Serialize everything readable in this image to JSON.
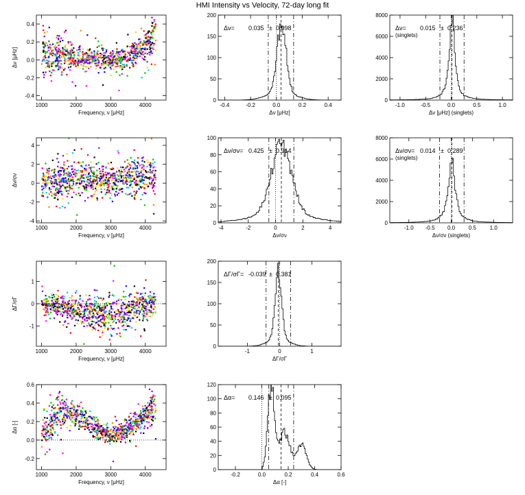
{
  "title": "HMI Intensity vs Velocity, 72-day long fit",
  "chart_data": [
    {
      "id": "p11",
      "type": "scatter",
      "xlabel": "Frequency, ν [μHz]",
      "ylabel": "Δν [μHz]",
      "xlim": [
        850,
        4600
      ],
      "ylim": [
        -0.45,
        0.5
      ],
      "xticks": [
        1000,
        2000,
        3000,
        4000
      ],
      "xtick_labels": [
        "1000",
        "2000",
        "3000",
        "4000"
      ],
      "yticks": [
        -0.4,
        -0.2,
        0.0,
        0.2,
        0.4
      ],
      "ytick_labels": [
        "-0.4",
        "-0.2",
        "0.0",
        "0.2",
        "0.4"
      ],
      "trend": [
        [
          1000,
          0.06
        ],
        [
          1500,
          0.05
        ],
        [
          2000,
          0.03
        ],
        [
          2500,
          0.01
        ],
        [
          3000,
          0.0
        ],
        [
          3500,
          0.03
        ],
        [
          4000,
          0.15
        ],
        [
          4300,
          0.3
        ]
      ],
      "spread": [
        [
          1000,
          0.12
        ],
        [
          2000,
          0.07
        ],
        [
          3000,
          0.05
        ],
        [
          4000,
          0.08
        ],
        [
          4300,
          0.12
        ]
      ],
      "xrange": [
        1000,
        4300
      ],
      "n": 900,
      "seed": 11
    },
    {
      "id": "p12",
      "type": "histogram",
      "xlabel": "Δν [μHz]",
      "ylabel": "",
      "xlim": [
        -0.45,
        0.5
      ],
      "ylim": [
        0,
        200
      ],
      "xticks": [
        -0.4,
        -0.2,
        0.0,
        0.2,
        0.4
      ],
      "xtick_labels": [
        "-0.4",
        "-0.2",
        "0.0",
        "0.2",
        "0.4"
      ],
      "yticks": [
        0,
        50,
        100,
        150,
        200
      ],
      "ytick_labels": [
        "0",
        "50",
        "100",
        "150",
        "200"
      ],
      "mean": 0.035,
      "sigma": 0.098,
      "peak": 162,
      "width": 0.035,
      "skew": 0.15,
      "bins": 120,
      "seed": 12,
      "vlines": {
        "dotted": [
          0.0
        ],
        "dashed": [
          0.035
        ],
        "dashdot": [
          -0.063,
          0.133
        ]
      },
      "annotation": {
        "label": "Δν=",
        "mean": "0.035",
        "pm": "±",
        "sigma": "0.098",
        "note": ""
      }
    },
    {
      "id": "p13",
      "type": "histogram",
      "xlabel": "Δν [μHz] (singlets)",
      "ylabel": "",
      "xlim": [
        -1.2,
        1.2
      ],
      "ylim": [
        0,
        8000
      ],
      "xticks": [
        -1.0,
        -0.5,
        0.0,
        0.5,
        1.0
      ],
      "xtick_labels": [
        "-1.0",
        "-0.5",
        "0.0",
        "0.5",
        "1.0"
      ],
      "yticks": [
        0,
        2000,
        4000,
        6000,
        8000
      ],
      "ytick_labels": [
        "0",
        "2000",
        "4000",
        "6000",
        "8000"
      ],
      "mean": 0.015,
      "sigma": 0.236,
      "peak": 7900,
      "width": 0.06,
      "skew": 0,
      "bins": 120,
      "seed": 13,
      "profile": "lorentz",
      "vlines": {
        "dotted": [
          0.0
        ],
        "dashed": [
          0.015
        ],
        "dashdot": [
          -0.221,
          0.251
        ]
      },
      "annotation": {
        "label": "Δν=",
        "mean": "0.015",
        "pm": "±",
        "sigma": "0.236",
        "note": "(singlets)"
      }
    },
    {
      "id": "p21",
      "type": "scatter",
      "xlabel": "Frequency, ν [μHz]",
      "ylabel": "Δν/σν",
      "xlim": [
        850,
        4600
      ],
      "ylim": [
        -4.2,
        4.8
      ],
      "xticks": [
        1000,
        2000,
        3000,
        4000
      ],
      "xtick_labels": [
        "1000",
        "2000",
        "3000",
        "4000"
      ],
      "yticks": [
        -4,
        -2,
        0,
        2,
        4
      ],
      "ytick_labels": [
        "-4",
        "-2",
        "0",
        "2",
        "4"
      ],
      "trend": [
        [
          1000,
          0.2
        ],
        [
          2000,
          0.4
        ],
        [
          3000,
          0.3
        ],
        [
          4000,
          0.8
        ],
        [
          4300,
          1.2
        ]
      ],
      "spread": [
        [
          1000,
          1.0
        ],
        [
          2000,
          1.0
        ],
        [
          3000,
          0.8
        ],
        [
          4000,
          1.0
        ],
        [
          4300,
          1.2
        ]
      ],
      "xrange": [
        1000,
        4300
      ],
      "n": 900,
      "seed": 21
    },
    {
      "id": "p22",
      "type": "histogram",
      "xlabel": "Δν/σν",
      "ylabel": "",
      "xlim": [
        -4.2,
        4.8
      ],
      "ylim": [
        0,
        100
      ],
      "xticks": [
        -4,
        -2,
        0,
        2,
        4
      ],
      "xtick_labels": [
        "-4",
        "-2",
        "0",
        "2",
        "4"
      ],
      "yticks": [
        0,
        20,
        40,
        60,
        80,
        100
      ],
      "ytick_labels": [
        "0",
        "20",
        "40",
        "60",
        "80",
        "100"
      ],
      "mean": 0.425,
      "sigma": 0.914,
      "peak": 82,
      "width": 0.75,
      "skew": 0,
      "bins": 110,
      "seed": 22,
      "vlines": {
        "dotted": [
          0.0
        ],
        "dashed": [
          0.425
        ],
        "dashdot": [
          -0.489,
          1.339
        ]
      },
      "annotation": {
        "label": "Δν/σν=",
        "mean": "0.425",
        "pm": "±",
        "sigma": "0.914",
        "note": ""
      }
    },
    {
      "id": "p23",
      "type": "histogram",
      "xlabel": "Δν/σν (singlets)",
      "ylabel": "",
      "xlim": [
        -1.45,
        1.45
      ],
      "ylim": [
        0,
        8000
      ],
      "xticks": [
        -1.0,
        -0.5,
        0.0,
        0.5,
        1.0
      ],
      "xtick_labels": [
        "-1.0",
        "-0.5",
        "0.0",
        "0.5",
        "1.0"
      ],
      "yticks": [
        0,
        2000,
        4000,
        6000,
        8000
      ],
      "ytick_labels": [
        "0",
        "2000",
        "4000",
        "6000",
        "8000"
      ],
      "mean": 0.014,
      "sigma": 0.289,
      "peak": 6100,
      "width": 0.09,
      "skew": 0,
      "bins": 110,
      "seed": 23,
      "profile": "lorentz",
      "vlines": {
        "dotted": [
          0.0
        ],
        "dashed": [
          0.014
        ],
        "dashdot": [
          -0.275,
          0.303
        ]
      },
      "annotation": {
        "label": "Δν/σν=",
        "mean": "0.014",
        "pm": "±",
        "sigma": "0.289",
        "note": "(singlets)"
      }
    },
    {
      "id": "p31",
      "type": "scatter",
      "xlabel": "Frequency, ν [μHz]",
      "ylabel": "ΔΓ/σΓ",
      "xlim": [
        850,
        4600
      ],
      "ylim": [
        -1.9,
        1.9
      ],
      "xticks": [
        1000,
        2000,
        3000,
        4000
      ],
      "xtick_labels": [
        "1000",
        "2000",
        "3000",
        "4000"
      ],
      "yticks": [
        -1,
        0,
        1
      ],
      "ytick_labels": [
        "-1",
        "0",
        "1"
      ],
      "trend": [
        [
          1000,
          0.0
        ],
        [
          1500,
          -0.1
        ],
        [
          2000,
          -0.3
        ],
        [
          2500,
          -0.45
        ],
        [
          3000,
          -0.5
        ],
        [
          3500,
          -0.35
        ],
        [
          4000,
          -0.1
        ],
        [
          4300,
          0.1
        ]
      ],
      "spread": [
        [
          1000,
          0.15
        ],
        [
          2000,
          0.3
        ],
        [
          3000,
          0.45
        ],
        [
          4000,
          0.3
        ],
        [
          4300,
          0.2
        ]
      ],
      "xrange": [
        1000,
        4300
      ],
      "n": 900,
      "seed": 31,
      "zero_line": 0
    },
    {
      "id": "p32",
      "type": "histogram",
      "xlabel": "ΔΓ/σΓ",
      "ylabel": "",
      "xlim": [
        -1.9,
        1.9
      ],
      "ylim": [
        0,
        200
      ],
      "xticks": [
        -1,
        0,
        1
      ],
      "xtick_labels": [
        "-1",
        "0",
        "1"
      ],
      "yticks": [
        0,
        50,
        100,
        150,
        200
      ],
      "ytick_labels": [
        "0",
        "50",
        "100",
        "150",
        "200"
      ],
      "mean": -0.039,
      "sigma": 0.381,
      "peak": 160,
      "width": 0.1,
      "skew": 0,
      "bins": 110,
      "seed": 32,
      "vlines": {
        "dotted": [
          0.0
        ],
        "dashed": [
          -0.039
        ],
        "dashdot": [
          -0.42,
          0.342
        ]
      },
      "annotation": {
        "label": "ΔΓ/σΓ=",
        "mean": "-0.039",
        "pm": "±",
        "sigma": "0.381",
        "note": ""
      }
    },
    {
      "id": "p41",
      "type": "scatter",
      "xlabel": "Frequency, ν [μHz]",
      "ylabel": "Δα [-]",
      "xlim": [
        850,
        4600
      ],
      "ylim": [
        -0.32,
        0.6
      ],
      "xticks": [
        1000,
        2000,
        3000,
        4000
      ],
      "xtick_labels": [
        "1000",
        "2000",
        "3000",
        "4000"
      ],
      "yticks": [
        -0.2,
        0.0,
        0.2,
        0.4,
        0.6
      ],
      "ytick_labels": [
        "-0.2",
        "0.0",
        "0.2",
        "0.4",
        "0.6"
      ],
      "trend": [
        [
          1100,
          0.1
        ],
        [
          1500,
          0.3
        ],
        [
          1800,
          0.3
        ],
        [
          2200,
          0.22
        ],
        [
          2600,
          0.12
        ],
        [
          3000,
          0.05
        ],
        [
          3400,
          0.1
        ],
        [
          3800,
          0.2
        ],
        [
          4200,
          0.35
        ]
      ],
      "spread": [
        [
          1100,
          0.1
        ],
        [
          2000,
          0.06
        ],
        [
          3000,
          0.04
        ],
        [
          4000,
          0.06
        ],
        [
          4300,
          0.08
        ]
      ],
      "xrange": [
        1000,
        4300
      ],
      "n": 900,
      "seed": 41,
      "zero_line": 0
    },
    {
      "id": "p42",
      "type": "histogram",
      "xlabel": "Δα [-]",
      "ylabel": "",
      "xlim": [
        -0.33,
        0.6
      ],
      "ylim": [
        0,
        120
      ],
      "xticks": [
        -0.2,
        0.0,
        0.2,
        0.4,
        0.6
      ],
      "xtick_labels": [
        "-0.2",
        "0.0",
        "0.2",
        "0.4",
        "0.6"
      ],
      "yticks": [
        0,
        20,
        40,
        60,
        80,
        100,
        120
      ],
      "ytick_labels": [
        "0",
        "20",
        "40",
        "60",
        "80",
        "100",
        "120"
      ],
      "mean": 0.146,
      "sigma": 0.095,
      "peak": 118,
      "width": 0.04,
      "skew": 0,
      "bins": 120,
      "seed": 42,
      "profile": "alpha",
      "vlines": {
        "dotted": [
          0.0
        ],
        "dashed": [
          0.146
        ],
        "dashdot": [
          0.051,
          0.241
        ]
      },
      "annotation": {
        "label": "Δα=",
        "mean": "0.146",
        "pm": "±",
        "sigma": "0.095",
        "note": ""
      }
    }
  ]
}
